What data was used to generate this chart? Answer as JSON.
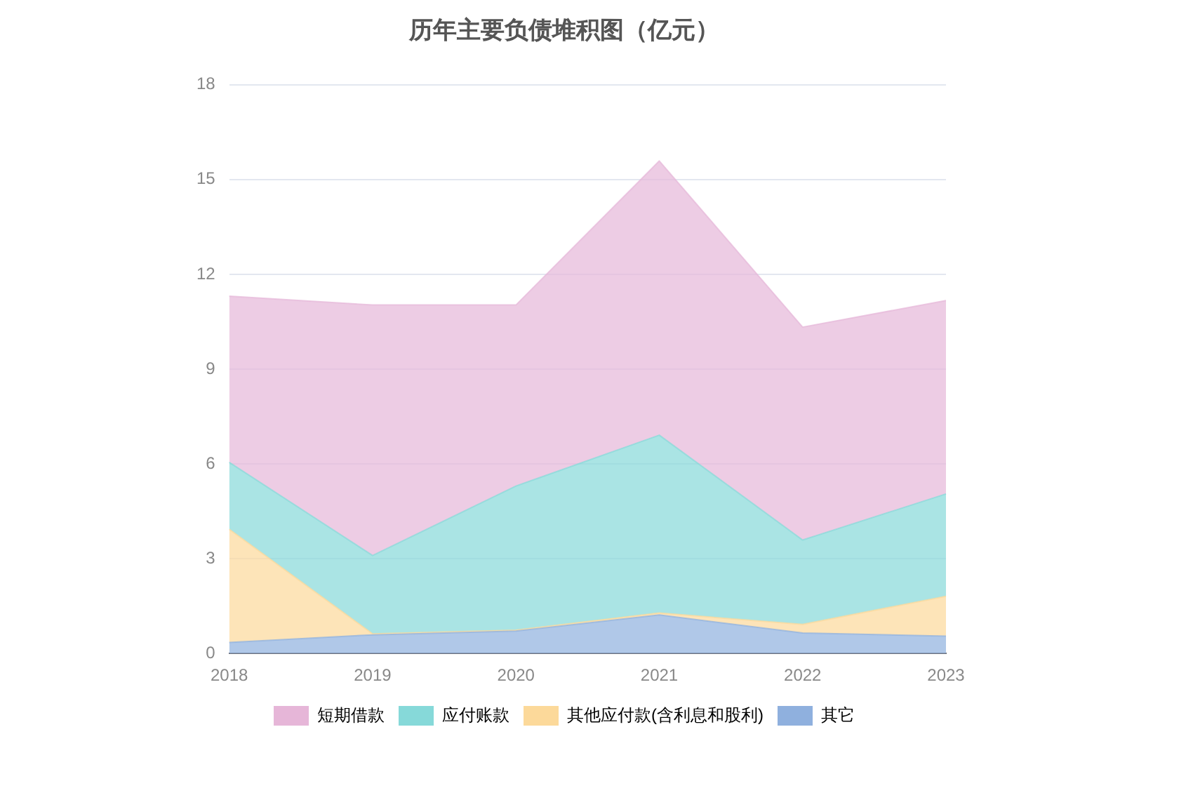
{
  "chart_data": {
    "type": "area",
    "title": "历年主要负债堆积图（亿元）",
    "categories": [
      "2018",
      "2019",
      "2020",
      "2021",
      "2022",
      "2023"
    ],
    "stacked": true,
    "series": [
      {
        "name": "其它",
        "color": "#8fb0de",
        "values": [
          0.35,
          0.59,
          0.71,
          1.22,
          0.65,
          0.55
        ]
      },
      {
        "name": "其他应付款(含利息和股利)",
        "color": "#fcd99a",
        "values": [
          3.58,
          0.03,
          0.03,
          0.06,
          0.27,
          1.26
        ]
      },
      {
        "name": "应付账款",
        "color": "#86d9d9",
        "values": [
          2.12,
          2.48,
          4.56,
          5.63,
          2.67,
          3.24
        ]
      },
      {
        "name": "短期借款",
        "color": "#e6b6d8",
        "values": [
          5.26,
          7.93,
          5.73,
          8.68,
          6.74,
          6.12
        ]
      }
    ],
    "ylim": [
      0,
      18
    ],
    "yticks": [
      0,
      3,
      6,
      9,
      12,
      15,
      18
    ],
    "grid": "y",
    "legend": "bottom",
    "marker": "none"
  }
}
